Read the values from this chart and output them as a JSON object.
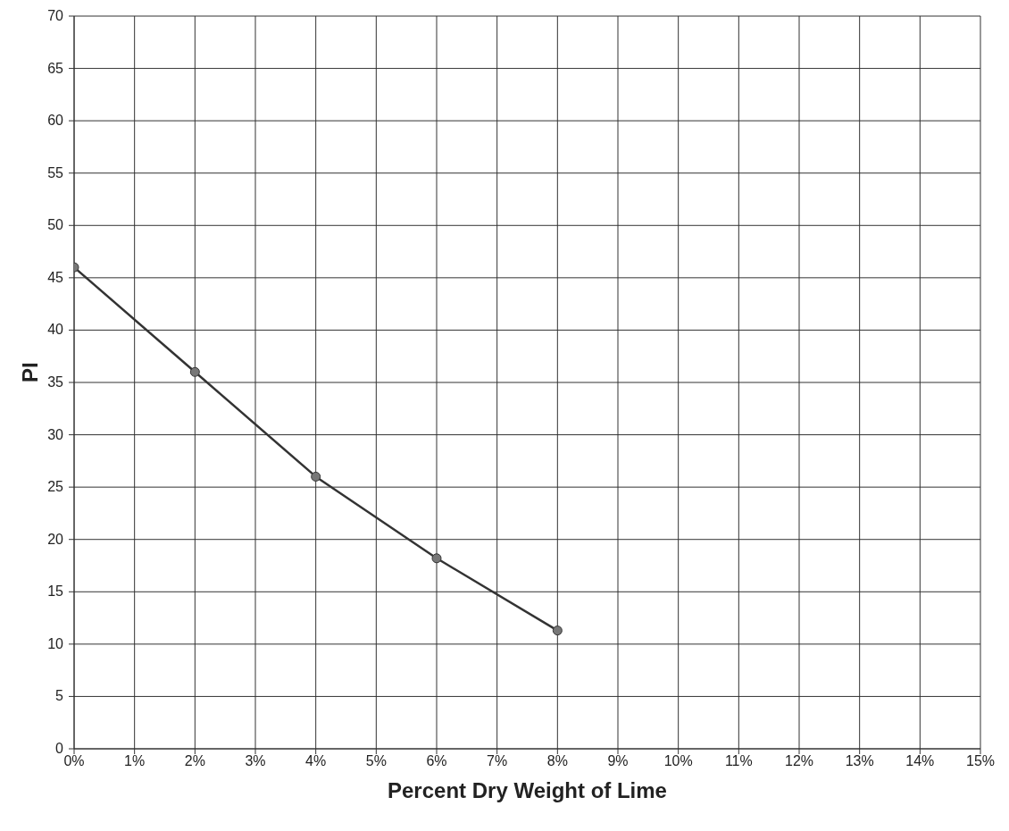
{
  "chart_data": {
    "type": "line",
    "xlabel": "Percent Dry Weight of Lime",
    "ylabel": "PI",
    "x": [
      0,
      2,
      4,
      6,
      8
    ],
    "series": [
      {
        "color": "#333333",
        "values": [
          46,
          36,
          26,
          18.2,
          11.3
        ]
      }
    ],
    "xlim": [
      0,
      15
    ],
    "xticks": [
      {
        "value": 0,
        "label": "0%"
      },
      {
        "value": 1,
        "label": "1%"
      },
      {
        "value": 2,
        "label": "2%"
      },
      {
        "value": 3,
        "label": "3%"
      },
      {
        "value": 4,
        "label": "4%"
      },
      {
        "value": 5,
        "label": "5%"
      },
      {
        "value": 6,
        "label": "6%"
      },
      {
        "value": 7,
        "label": "7%"
      },
      {
        "value": 8,
        "label": "8%"
      },
      {
        "value": 9,
        "label": "9%"
      },
      {
        "value": 10,
        "label": "10%"
      },
      {
        "value": 11,
        "label": "11%"
      },
      {
        "value": 12,
        "label": "12%"
      },
      {
        "value": 13,
        "label": "13%"
      },
      {
        "value": 14,
        "label": "14%"
      },
      {
        "value": 15,
        "label": "15%"
      }
    ],
    "ylim": [
      0,
      70
    ],
    "yticks": [
      0,
      5,
      10,
      15,
      20,
      25,
      30,
      35,
      40,
      45,
      50,
      55,
      60,
      65,
      70
    ],
    "grid": true,
    "marker": "circle",
    "line_style": "solid"
  }
}
